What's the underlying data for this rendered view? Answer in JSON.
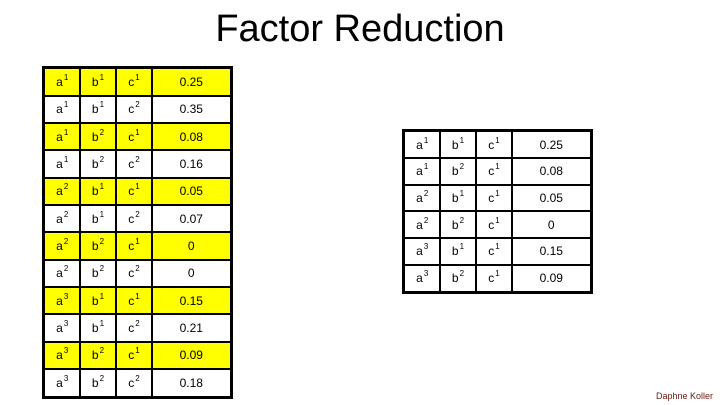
{
  "title": "Factor Reduction",
  "credit": "Daphne Koller",
  "colors": {
    "highlight": "#ffff00",
    "table_border": "#000000",
    "credit_text": "#69170f"
  },
  "left_table": {
    "rows": [
      {
        "cells": [
          [
            "a",
            "1"
          ],
          [
            "b",
            "1"
          ],
          [
            "c",
            "1"
          ]
        ],
        "value": "0.25",
        "highlighted": true
      },
      {
        "cells": [
          [
            "a",
            "1"
          ],
          [
            "b",
            "1"
          ],
          [
            "c",
            "2"
          ]
        ],
        "value": "0.35",
        "highlighted": false
      },
      {
        "cells": [
          [
            "a",
            "1"
          ],
          [
            "b",
            "2"
          ],
          [
            "c",
            "1"
          ]
        ],
        "value": "0.08",
        "highlighted": true
      },
      {
        "cells": [
          [
            "a",
            "1"
          ],
          [
            "b",
            "2"
          ],
          [
            "c",
            "2"
          ]
        ],
        "value": "0.16",
        "highlighted": false
      },
      {
        "cells": [
          [
            "a",
            "2"
          ],
          [
            "b",
            "1"
          ],
          [
            "c",
            "1"
          ]
        ],
        "value": "0.05",
        "highlighted": true
      },
      {
        "cells": [
          [
            "a",
            "2"
          ],
          [
            "b",
            "1"
          ],
          [
            "c",
            "2"
          ]
        ],
        "value": "0.07",
        "highlighted": false
      },
      {
        "cells": [
          [
            "a",
            "2"
          ],
          [
            "b",
            "2"
          ],
          [
            "c",
            "1"
          ]
        ],
        "value": "0",
        "highlighted": true
      },
      {
        "cells": [
          [
            "a",
            "2"
          ],
          [
            "b",
            "2"
          ],
          [
            "c",
            "2"
          ]
        ],
        "value": "0",
        "highlighted": false
      },
      {
        "cells": [
          [
            "a",
            "3"
          ],
          [
            "b",
            "1"
          ],
          [
            "c",
            "1"
          ]
        ],
        "value": "0.15",
        "highlighted": true
      },
      {
        "cells": [
          [
            "a",
            "3"
          ],
          [
            "b",
            "1"
          ],
          [
            "c",
            "2"
          ]
        ],
        "value": "0.21",
        "highlighted": false
      },
      {
        "cells": [
          [
            "a",
            "3"
          ],
          [
            "b",
            "2"
          ],
          [
            "c",
            "1"
          ]
        ],
        "value": "0.09",
        "highlighted": true
      },
      {
        "cells": [
          [
            "a",
            "3"
          ],
          [
            "b",
            "2"
          ],
          [
            "c",
            "2"
          ]
        ],
        "value": "0.18",
        "highlighted": false
      }
    ]
  },
  "right_table": {
    "rows": [
      {
        "cells": [
          [
            "a",
            "1"
          ],
          [
            "b",
            "1"
          ],
          [
            "c",
            "1"
          ]
        ],
        "value": "0.25",
        "highlighted": false
      },
      {
        "cells": [
          [
            "a",
            "1"
          ],
          [
            "b",
            "2"
          ],
          [
            "c",
            "1"
          ]
        ],
        "value": "0.08",
        "highlighted": false
      },
      {
        "cells": [
          [
            "a",
            "2"
          ],
          [
            "b",
            "1"
          ],
          [
            "c",
            "1"
          ]
        ],
        "value": "0.05",
        "highlighted": false
      },
      {
        "cells": [
          [
            "a",
            "2"
          ],
          [
            "b",
            "2"
          ],
          [
            "c",
            "1"
          ]
        ],
        "value": "0",
        "highlighted": false
      },
      {
        "cells": [
          [
            "a",
            "3"
          ],
          [
            "b",
            "1"
          ],
          [
            "c",
            "1"
          ]
        ],
        "value": "0.15",
        "highlighted": false
      },
      {
        "cells": [
          [
            "a",
            "3"
          ],
          [
            "b",
            "2"
          ],
          [
            "c",
            "1"
          ]
        ],
        "value": "0.09",
        "highlighted": false
      }
    ]
  }
}
